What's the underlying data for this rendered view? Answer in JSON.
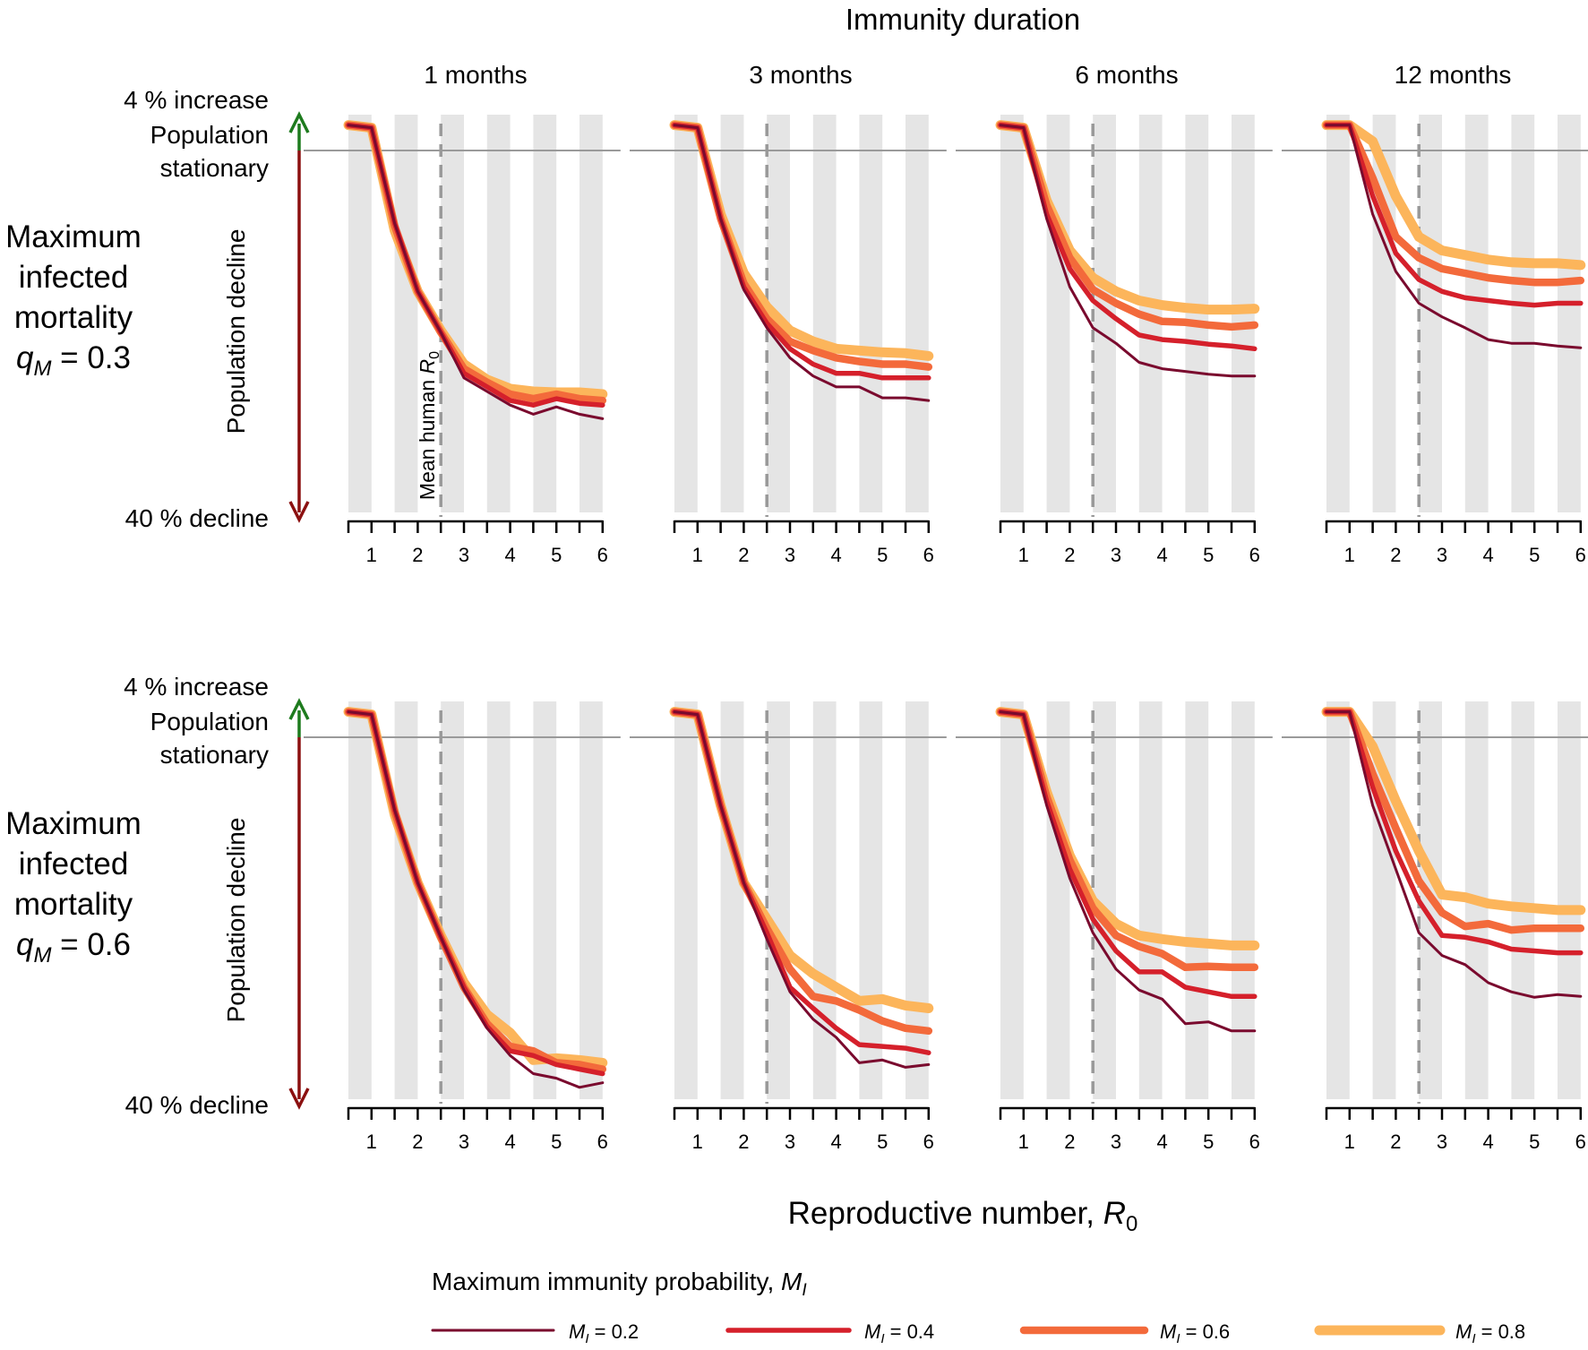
{
  "figure": {
    "top_title": "Immunity duration",
    "x_axis_title": "Reproductive number, ",
    "x_axis_symbol": "R",
    "x_axis_symbol_sub": "0",
    "increase_label": "4 % increase",
    "stationary_label_line1": "Population",
    "stationary_label_line2": "stationary",
    "decline_axis_label": "Population decline",
    "decline_label": "40 % decline",
    "mean_r0_label": "Mean human ",
    "mean_r0_symbol": "R",
    "mean_r0_sub": "0",
    "row_labels": [
      {
        "line1": "Maximum",
        "line2": "infected",
        "line3": "mortality",
        "symbol": "q",
        "sub": "M",
        "value": " = 0.3"
      },
      {
        "line1": "Maximum",
        "line2": "infected",
        "line3": "mortality",
        "symbol": "q",
        "sub": "M",
        "value": " = 0.6"
      }
    ],
    "legend_title": "Maximum immunity probability, ",
    "legend_title_symbol": "M",
    "legend_title_sub": "I"
  },
  "colors": {
    "increase": "#1e7b1e",
    "stationary": "#a0a0a0",
    "decline": "#8b1010",
    "band": "#e5e5e5",
    "stationary_line": "#9a9a9a",
    "mean_line": "#999999"
  },
  "chart_data": {
    "type": "line",
    "title": "Immunity duration",
    "xlabel": "Reproductive number, R0",
    "ylabel": "Population decline",
    "xlim": [
      0.5,
      6.0
    ],
    "ylim": [
      -40,
      4
    ],
    "y_axis_ticks": [
      {
        "value": 4,
        "label": "4 % increase"
      },
      {
        "value": 0,
        "label": "Population stationary"
      },
      {
        "value": -40,
        "label": "40 % decline"
      }
    ],
    "x_ticks": [
      1,
      2,
      3,
      4,
      5,
      6
    ],
    "x_minor_ticks": [
      0.5,
      1,
      1.5,
      2,
      2.5,
      3,
      3.5,
      4,
      4.5,
      5,
      5.5,
      6
    ],
    "mean_human_r0": 2.5,
    "x": [
      0.5,
      1.0,
      1.5,
      2.0,
      2.5,
      3.0,
      3.5,
      4.0,
      4.5,
      5.0,
      5.5,
      6.0
    ],
    "columns": [
      "1 months",
      "3 months",
      "6 months",
      "12 months"
    ],
    "rows": [
      "q_M = 0.3",
      "q_M = 0.6"
    ],
    "series_meta": [
      {
        "name": "M_I = 0.2",
        "sym": "M",
        "sub": "I",
        "value": " = 0.2",
        "color": "#7a0a2e",
        "width": 3
      },
      {
        "name": "M_I = 0.4",
        "sym": "M",
        "sub": "I",
        "value": " = 0.4",
        "color": "#d5202b",
        "width": 5.5
      },
      {
        "name": "M_I = 0.6",
        "sym": "M",
        "sub": "I",
        "value": " = 0.6",
        "color": "#f36a3b",
        "width": 8.5
      },
      {
        "name": "M_I = 0.8",
        "sym": "M",
        "sub": "I",
        "value": " = 0.8",
        "color": "#fcb55b",
        "width": 11
      }
    ],
    "panels": [
      {
        "row": 0,
        "col": 0,
        "series": [
          {
            "name": "M_I = 0.2",
            "values": [
              2.8,
              2.5,
              -8.0,
              -15.5,
              -20.0,
              -25.0,
              -26.5,
              -28.0,
              -29.0,
              -28.2,
              -29.0,
              -29.5
            ]
          },
          {
            "name": "M_I = 0.4",
            "values": [
              2.8,
              2.5,
              -8.0,
              -15.5,
              -20.0,
              -24.5,
              -26.0,
              -27.5,
              -28.0,
              -27.3,
              -27.8,
              -28.0
            ]
          },
          {
            "name": "M_I = 0.6",
            "values": [
              2.8,
              2.5,
              -8.3,
              -15.5,
              -20.0,
              -24.0,
              -25.5,
              -26.8,
              -27.3,
              -26.8,
              -27.3,
              -27.5
            ]
          },
          {
            "name": "M_I = 0.8",
            "values": [
              2.8,
              2.5,
              -8.8,
              -15.5,
              -19.8,
              -23.5,
              -25.2,
              -26.2,
              -26.5,
              -26.6,
              -26.6,
              -26.8
            ]
          }
        ]
      },
      {
        "row": 0,
        "col": 1,
        "series": [
          {
            "name": "M_I = 0.2",
            "values": [
              2.8,
              2.5,
              -7.5,
              -15.3,
              -19.5,
              -22.8,
              -24.8,
              -26.0,
              -26.0,
              -27.2,
              -27.2,
              -27.5
            ]
          },
          {
            "name": "M_I = 0.4",
            "values": [
              2.8,
              2.5,
              -7.5,
              -15.0,
              -19.0,
              -21.8,
              -23.5,
              -24.5,
              -24.5,
              -25.0,
              -25.0,
              -25.0
            ]
          },
          {
            "name": "M_I = 0.6",
            "values": [
              2.8,
              2.5,
              -7.5,
              -14.6,
              -18.5,
              -21.0,
              -22.0,
              -22.8,
              -23.2,
              -23.5,
              -23.5,
              -23.8
            ]
          },
          {
            "name": "M_I = 0.8",
            "values": [
              2.8,
              2.5,
              -7.0,
              -13.5,
              -17.2,
              -19.8,
              -21.0,
              -21.8,
              -22.0,
              -22.2,
              -22.3,
              -22.6
            ]
          }
        ]
      },
      {
        "row": 0,
        "col": 2,
        "series": [
          {
            "name": "M_I = 0.2",
            "values": [
              2.8,
              2.5,
              -7.5,
              -15.0,
              -19.5,
              -21.2,
              -23.3,
              -24.0,
              -24.3,
              -24.6,
              -24.8,
              -24.8
            ]
          },
          {
            "name": "M_I = 0.4",
            "values": [
              2.8,
              2.5,
              -7.0,
              -13.0,
              -16.5,
              -18.5,
              -20.3,
              -20.8,
              -21.0,
              -21.3,
              -21.5,
              -21.8
            ]
          },
          {
            "name": "M_I = 0.6",
            "values": [
              2.8,
              2.5,
              -6.0,
              -11.8,
              -15.3,
              -16.8,
              -18.0,
              -18.8,
              -18.9,
              -19.2,
              -19.4,
              -19.2
            ]
          },
          {
            "name": "M_I = 0.8",
            "values": [
              2.8,
              2.5,
              -5.5,
              -11.0,
              -14.0,
              -15.5,
              -16.5,
              -17.0,
              -17.3,
              -17.5,
              -17.5,
              -17.4
            ]
          }
        ]
      },
      {
        "row": 0,
        "col": 3,
        "series": [
          {
            "name": "M_I = 0.2",
            "values": [
              2.8,
              2.8,
              -7.0,
              -13.3,
              -16.8,
              -18.3,
              -19.5,
              -20.8,
              -21.2,
              -21.2,
              -21.5,
              -21.7
            ]
          },
          {
            "name": "M_I = 0.4",
            "values": [
              2.8,
              2.8,
              -5.0,
              -11.3,
              -14.2,
              -15.5,
              -16.2,
              -16.5,
              -16.8,
              -17.0,
              -16.8,
              -16.8
            ]
          },
          {
            "name": "M_I = 0.6",
            "values": [
              2.8,
              2.8,
              -3.0,
              -9.5,
              -11.8,
              -13.0,
              -13.5,
              -14.0,
              -14.3,
              -14.5,
              -14.5,
              -14.3
            ]
          },
          {
            "name": "M_I = 0.8",
            "values": [
              2.8,
              2.8,
              1.0,
              -5.0,
              -9.5,
              -11.0,
              -11.5,
              -12.0,
              -12.3,
              -12.4,
              -12.4,
              -12.6
            ]
          }
        ]
      },
      {
        "row": 1,
        "col": 0,
        "series": [
          {
            "name": "M_I = 0.2",
            "values": [
              2.8,
              2.5,
              -8.0,
              -16.0,
              -22.0,
              -27.8,
              -32.0,
              -35.0,
              -37.0,
              -37.5,
              -38.5,
              -38.0
            ]
          },
          {
            "name": "M_I = 0.4",
            "values": [
              2.8,
              2.5,
              -8.0,
              -16.0,
              -22.0,
              -27.5,
              -31.8,
              -34.5,
              -35.0,
              -36.0,
              -36.5,
              -37.0
            ]
          },
          {
            "name": "M_I = 0.6",
            "values": [
              2.8,
              2.5,
              -8.2,
              -16.0,
              -22.0,
              -27.5,
              -31.5,
              -34.0,
              -34.5,
              -35.8,
              -36.0,
              -36.5
            ]
          },
          {
            "name": "M_I = 0.8",
            "values": [
              2.8,
              2.5,
              -8.5,
              -16.0,
              -21.8,
              -27.0,
              -30.5,
              -32.5,
              -35.5,
              -35.3,
              -35.5,
              -35.8
            ]
          }
        ]
      },
      {
        "row": 1,
        "col": 1,
        "series": [
          {
            "name": "M_I = 0.2",
            "values": [
              2.8,
              2.5,
              -7.5,
              -16.0,
              -22.2,
              -28.0,
              -31.0,
              -33.0,
              -35.8,
              -35.5,
              -36.3,
              -36.0
            ]
          },
          {
            "name": "M_I = 0.4",
            "values": [
              2.8,
              2.5,
              -7.5,
              -16.0,
              -21.5,
              -27.5,
              -29.8,
              -32.0,
              -33.8,
              -34.0,
              -34.2,
              -34.7
            ]
          },
          {
            "name": "M_I = 0.6",
            "values": [
              2.8,
              2.5,
              -7.5,
              -16.0,
              -21.0,
              -25.5,
              -28.5,
              -29.0,
              -30.0,
              -31.2,
              -32.0,
              -32.3
            ]
          },
          {
            "name": "M_I = 0.8",
            "values": [
              2.8,
              2.5,
              -7.5,
              -16.0,
              -20.0,
              -24.0,
              -26.0,
              -27.5,
              -29.0,
              -28.8,
              -29.5,
              -29.8
            ]
          }
        ]
      },
      {
        "row": 1,
        "col": 2,
        "series": [
          {
            "name": "M_I = 0.2",
            "values": [
              2.8,
              2.5,
              -7.5,
              -15.5,
              -21.5,
              -25.5,
              -27.8,
              -28.8,
              -31.5,
              -31.3,
              -32.3,
              -32.3
            ]
          },
          {
            "name": "M_I = 0.4",
            "values": [
              2.8,
              2.5,
              -7.0,
              -14.5,
              -20.0,
              -23.5,
              -25.8,
              -25.8,
              -27.5,
              -28.0,
              -28.5,
              -28.5
            ]
          },
          {
            "name": "M_I = 0.6",
            "values": [
              2.8,
              2.5,
              -6.5,
              -13.5,
              -18.8,
              -21.8,
              -23.0,
              -23.8,
              -25.3,
              -25.2,
              -25.3,
              -25.3
            ]
          },
          {
            "name": "M_I = 0.8",
            "values": [
              2.8,
              2.5,
              -6.0,
              -13.0,
              -18.0,
              -20.5,
              -21.8,
              -22.2,
              -22.5,
              -22.7,
              -22.9,
              -22.9
            ]
          }
        ]
      },
      {
        "row": 1,
        "col": 3,
        "series": [
          {
            "name": "M_I = 0.2",
            "values": [
              2.8,
              2.8,
              -7.5,
              -14.5,
              -21.5,
              -24.0,
              -25.0,
              -27.0,
              -28.0,
              -28.6,
              -28.3,
              -28.5
            ]
          },
          {
            "name": "M_I = 0.4",
            "values": [
              2.8,
              2.8,
              -5.5,
              -12.5,
              -18.0,
              -21.8,
              -22.0,
              -22.5,
              -23.3,
              -23.5,
              -23.7,
              -23.7
            ]
          },
          {
            "name": "M_I = 0.6",
            "values": [
              2.8,
              2.8,
              -4.0,
              -10.0,
              -15.8,
              -19.3,
              -20.8,
              -20.5,
              -21.2,
              -21.0,
              -21.0,
              -21.0
            ]
          },
          {
            "name": "M_I = 0.8",
            "values": [
              2.8,
              2.8,
              -1.0,
              -7.0,
              -12.5,
              -17.3,
              -17.6,
              -18.3,
              -18.6,
              -18.8,
              -19.0,
              -19.0
            ]
          }
        ]
      }
    ]
  }
}
